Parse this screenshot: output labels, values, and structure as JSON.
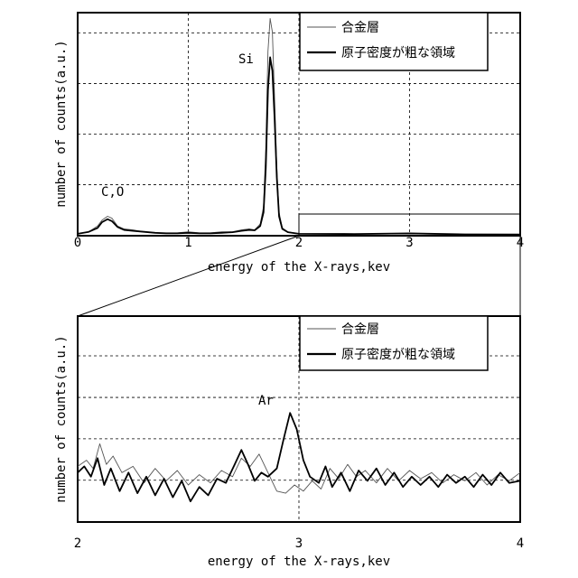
{
  "chart_data": [
    {
      "type": "line",
      "xlabel": "energy of the X-rays,kev",
      "ylabel": "number of counts(a.u.)",
      "xlim": [
        0,
        4
      ],
      "ylim": [
        0,
        1.15
      ],
      "x_ticks": [
        "0",
        "1",
        "2",
        "3",
        "4"
      ],
      "grid": true,
      "legend_position": "top-right",
      "annotations": [
        {
          "text": "C,O",
          "x": 0.3,
          "y": 0.2
        },
        {
          "text": "Si",
          "x": 1.54,
          "y": 1.02
        }
      ],
      "series": [
        {
          "name": "合金層",
          "style": "thin",
          "points": [
            [
              0.0,
              0.01
            ],
            [
              0.1,
              0.02
            ],
            [
              0.18,
              0.05
            ],
            [
              0.22,
              0.08
            ],
            [
              0.27,
              0.1
            ],
            [
              0.31,
              0.09
            ],
            [
              0.36,
              0.05
            ],
            [
              0.42,
              0.035
            ],
            [
              0.5,
              0.03
            ],
            [
              0.6,
              0.02
            ],
            [
              0.7,
              0.015
            ],
            [
              0.8,
              0.015
            ],
            [
              0.9,
              0.015
            ],
            [
              1.0,
              0.02
            ],
            [
              1.1,
              0.015
            ],
            [
              1.2,
              0.015
            ],
            [
              1.3,
              0.02
            ],
            [
              1.4,
              0.02
            ],
            [
              1.48,
              0.03
            ],
            [
              1.55,
              0.035
            ],
            [
              1.6,
              0.03
            ],
            [
              1.65,
              0.06
            ],
            [
              1.68,
              0.15
            ],
            [
              1.7,
              0.45
            ],
            [
              1.72,
              0.95
            ],
            [
              1.74,
              1.12
            ],
            [
              1.76,
              1.05
            ],
            [
              1.78,
              0.7
            ],
            [
              1.8,
              0.35
            ],
            [
              1.82,
              0.12
            ],
            [
              1.85,
              0.04
            ],
            [
              1.9,
              0.02
            ],
            [
              2.0,
              0.01
            ],
            [
              2.5,
              0.008
            ],
            [
              3.0,
              0.01
            ],
            [
              3.5,
              0.006
            ],
            [
              4.0,
              0.005
            ]
          ]
        },
        {
          "name": "原子密度が粗な領域",
          "style": "thick",
          "points": [
            [
              0.0,
              0.01
            ],
            [
              0.1,
              0.02
            ],
            [
              0.18,
              0.04
            ],
            [
              0.22,
              0.07
            ],
            [
              0.27,
              0.085
            ],
            [
              0.31,
              0.075
            ],
            [
              0.36,
              0.045
            ],
            [
              0.42,
              0.03
            ],
            [
              0.5,
              0.025
            ],
            [
              0.6,
              0.02
            ],
            [
              0.7,
              0.015
            ],
            [
              0.8,
              0.012
            ],
            [
              0.9,
              0.012
            ],
            [
              1.0,
              0.015
            ],
            [
              1.1,
              0.012
            ],
            [
              1.2,
              0.012
            ],
            [
              1.3,
              0.015
            ],
            [
              1.4,
              0.018
            ],
            [
              1.48,
              0.025
            ],
            [
              1.55,
              0.03
            ],
            [
              1.6,
              0.028
            ],
            [
              1.65,
              0.05
            ],
            [
              1.68,
              0.12
            ],
            [
              1.7,
              0.35
            ],
            [
              1.72,
              0.75
            ],
            [
              1.74,
              0.92
            ],
            [
              1.76,
              0.85
            ],
            [
              1.78,
              0.6
            ],
            [
              1.8,
              0.3
            ],
            [
              1.82,
              0.1
            ],
            [
              1.85,
              0.035
            ],
            [
              1.9,
              0.018
            ],
            [
              2.0,
              0.01
            ],
            [
              2.5,
              0.009
            ],
            [
              3.0,
              0.012
            ],
            [
              3.5,
              0.007
            ],
            [
              4.0,
              0.006
            ]
          ]
        }
      ]
    },
    {
      "type": "line",
      "xlabel": "energy of the X-rays,kev",
      "ylabel": "number of counts(a.u.)",
      "xlim": [
        2,
        4
      ],
      "ylim": [
        0,
        1
      ],
      "x_ticks": [
        "2",
        "3",
        "4"
      ],
      "grid": true,
      "legend_position": "top-right",
      "annotations": [
        {
          "text": "Ar",
          "x": 2.82,
          "y": 0.5
        }
      ],
      "series": [
        {
          "name": "合金層",
          "style": "thin",
          "points": [
            [
              2.0,
              0.27
            ],
            [
              2.04,
              0.3
            ],
            [
              2.07,
              0.26
            ],
            [
              2.1,
              0.38
            ],
            [
              2.13,
              0.28
            ],
            [
              2.16,
              0.32
            ],
            [
              2.2,
              0.24
            ],
            [
              2.25,
              0.27
            ],
            [
              2.3,
              0.19
            ],
            [
              2.35,
              0.26
            ],
            [
              2.4,
              0.2
            ],
            [
              2.45,
              0.25
            ],
            [
              2.5,
              0.18
            ],
            [
              2.55,
              0.23
            ],
            [
              2.6,
              0.19
            ],
            [
              2.65,
              0.25
            ],
            [
              2.7,
              0.22
            ],
            [
              2.74,
              0.31
            ],
            [
              2.78,
              0.27
            ],
            [
              2.82,
              0.33
            ],
            [
              2.86,
              0.24
            ],
            [
              2.9,
              0.15
            ],
            [
              2.94,
              0.14
            ],
            [
              2.98,
              0.18
            ],
            [
              3.02,
              0.15
            ],
            [
              3.06,
              0.2
            ],
            [
              3.1,
              0.16
            ],
            [
              3.14,
              0.26
            ],
            [
              3.18,
              0.21
            ],
            [
              3.22,
              0.28
            ],
            [
              3.26,
              0.22
            ],
            [
              3.3,
              0.25
            ],
            [
              3.35,
              0.19
            ],
            [
              3.4,
              0.26
            ],
            [
              3.45,
              0.2
            ],
            [
              3.5,
              0.25
            ],
            [
              3.55,
              0.21
            ],
            [
              3.6,
              0.24
            ],
            [
              3.65,
              0.19
            ],
            [
              3.7,
              0.23
            ],
            [
              3.75,
              0.2
            ],
            [
              3.8,
              0.24
            ],
            [
              3.85,
              0.18
            ],
            [
              3.9,
              0.23
            ],
            [
              3.95,
              0.2
            ],
            [
              4.0,
              0.24
            ]
          ]
        },
        {
          "name": "原子密度が粗な領域",
          "style": "thick",
          "points": [
            [
              2.0,
              0.24
            ],
            [
              2.03,
              0.27
            ],
            [
              2.06,
              0.22
            ],
            [
              2.09,
              0.31
            ],
            [
              2.12,
              0.18
            ],
            [
              2.15,
              0.26
            ],
            [
              2.19,
              0.15
            ],
            [
              2.23,
              0.24
            ],
            [
              2.27,
              0.14
            ],
            [
              2.31,
              0.22
            ],
            [
              2.35,
              0.13
            ],
            [
              2.39,
              0.21
            ],
            [
              2.43,
              0.12
            ],
            [
              2.47,
              0.2
            ],
            [
              2.51,
              0.1
            ],
            [
              2.55,
              0.17
            ],
            [
              2.59,
              0.13
            ],
            [
              2.63,
              0.21
            ],
            [
              2.67,
              0.19
            ],
            [
              2.71,
              0.28
            ],
            [
              2.74,
              0.35
            ],
            [
              2.77,
              0.28
            ],
            [
              2.8,
              0.2
            ],
            [
              2.83,
              0.24
            ],
            [
              2.86,
              0.22
            ],
            [
              2.9,
              0.26
            ],
            [
              2.93,
              0.4
            ],
            [
              2.96,
              0.53
            ],
            [
              2.99,
              0.45
            ],
            [
              3.02,
              0.3
            ],
            [
              3.05,
              0.22
            ],
            [
              3.09,
              0.19
            ],
            [
              3.12,
              0.27
            ],
            [
              3.15,
              0.17
            ],
            [
              3.19,
              0.24
            ],
            [
              3.23,
              0.15
            ],
            [
              3.27,
              0.25
            ],
            [
              3.31,
              0.2
            ],
            [
              3.35,
              0.26
            ],
            [
              3.39,
              0.18
            ],
            [
              3.43,
              0.24
            ],
            [
              3.47,
              0.17
            ],
            [
              3.51,
              0.22
            ],
            [
              3.55,
              0.18
            ],
            [
              3.59,
              0.22
            ],
            [
              3.63,
              0.17
            ],
            [
              3.67,
              0.23
            ],
            [
              3.71,
              0.19
            ],
            [
              3.75,
              0.22
            ],
            [
              3.79,
              0.17
            ],
            [
              3.83,
              0.23
            ],
            [
              3.87,
              0.18
            ],
            [
              3.91,
              0.24
            ],
            [
              3.95,
              0.19
            ],
            [
              4.0,
              0.2
            ]
          ]
        }
      ]
    }
  ]
}
